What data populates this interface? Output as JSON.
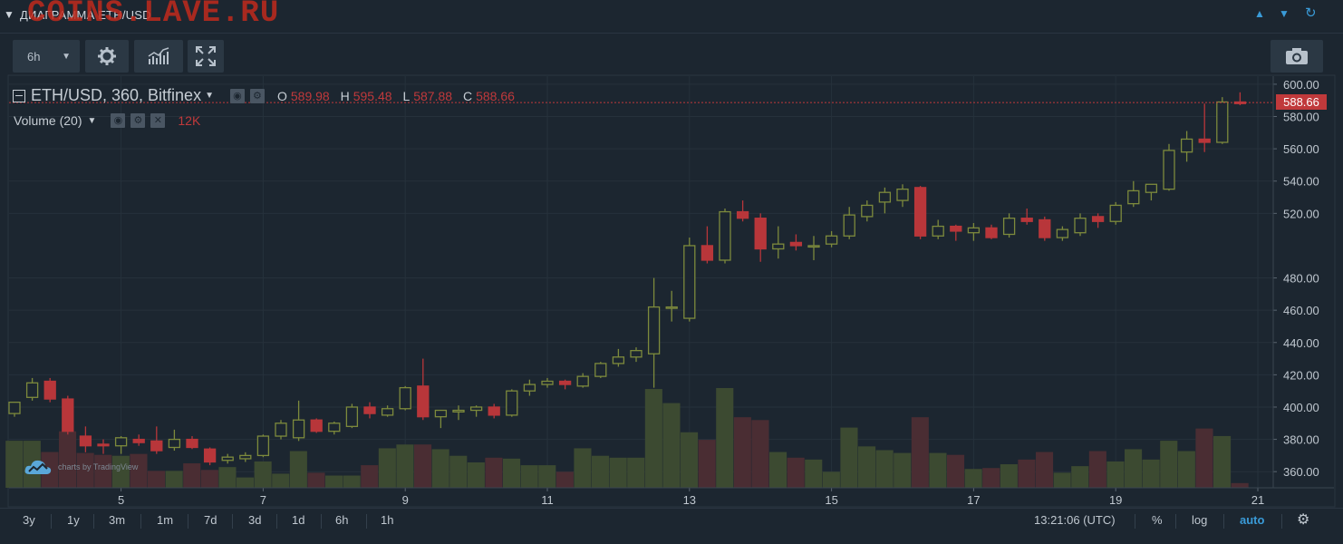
{
  "header": {
    "title": "ДИАГРАММА ETH/USD",
    "watermark": "COINS.LAVE.RU"
  },
  "toolbar": {
    "interval": "6h"
  },
  "legend": {
    "symbol": "ETH/USD, 360, Bitfinex",
    "o_label": "O",
    "o_value": "589.98",
    "h_label": "H",
    "h_value": "595.48",
    "l_label": "L",
    "l_value": "587.88",
    "c_label": "C",
    "c_value": "588.66",
    "volume_label": "Volume (20)",
    "volume_value": "12K"
  },
  "last_price": "588.66",
  "attribution": "charts by TradingView",
  "bottom": {
    "ranges": [
      "3y",
      "1y",
      "3m",
      "1m",
      "7d",
      "3d",
      "1d",
      "6h",
      "1h"
    ],
    "time": "13:21:06 (UTC)",
    "percent": "%",
    "log": "log",
    "auto": "auto"
  },
  "colors": {
    "up": "#7d8a3c",
    "down": "#b8363a",
    "vol_up": "#3c4a31",
    "vol_down": "#4a2d33",
    "background": "#1c2630",
    "grid": "#26313b",
    "axis_text": "#c0c8d0"
  },
  "chart_data": {
    "type": "candlestick",
    "title": "ETH/USD, 360, Bitfinex",
    "ylim": [
      350,
      605
    ],
    "y_ticks": [
      360,
      380,
      400,
      420,
      440,
      460,
      480,
      520,
      540,
      560,
      580,
      600
    ],
    "x_ticks": [
      {
        "label": "5",
        "i": 6
      },
      {
        "label": "7",
        "i": 14
      },
      {
        "label": "9",
        "i": 22
      },
      {
        "label": "11",
        "i": 30
      },
      {
        "label": "13",
        "i": 38
      },
      {
        "label": "15",
        "i": 46
      },
      {
        "label": "17",
        "i": 54
      },
      {
        "label": "19",
        "i": 62
      },
      {
        "label": "21",
        "i": 70
      }
    ],
    "grid": true,
    "candles": [
      {
        "o": 396,
        "h": 403,
        "l": 394,
        "c": 403,
        "v": 5000
      },
      {
        "o": 406,
        "h": 418,
        "l": 404,
        "c": 415,
        "v": 5000
      },
      {
        "o": 416,
        "h": 418,
        "l": 403,
        "c": 405,
        "v": 3800
      },
      {
        "o": 405,
        "h": 407,
        "l": 383,
        "c": 385,
        "v": 6000
      },
      {
        "o": 382,
        "h": 388,
        "l": 372,
        "c": 376,
        "v": 3700
      },
      {
        "o": 377,
        "h": 380,
        "l": 371,
        "c": 376,
        "v": 3500
      },
      {
        "o": 376,
        "h": 382,
        "l": 371,
        "c": 381,
        "v": 3400
      },
      {
        "o": 380,
        "h": 383,
        "l": 376,
        "c": 378,
        "v": 3600
      },
      {
        "o": 379,
        "h": 388,
        "l": 371,
        "c": 373,
        "v": 1800
      },
      {
        "o": 375,
        "h": 386,
        "l": 373,
        "c": 380,
        "v": 1800
      },
      {
        "o": 380,
        "h": 382,
        "l": 374,
        "c": 375,
        "v": 2600
      },
      {
        "o": 374,
        "h": 375,
        "l": 364,
        "c": 366,
        "v": 1900
      },
      {
        "o": 367,
        "h": 371,
        "l": 365,
        "c": 369,
        "v": 2200
      },
      {
        "o": 368,
        "h": 372,
        "l": 366,
        "c": 370,
        "v": 1100
      },
      {
        "o": 370,
        "h": 383,
        "l": 369,
        "c": 382,
        "v": 2800
      },
      {
        "o": 382,
        "h": 392,
        "l": 380,
        "c": 390,
        "v": 1500
      },
      {
        "o": 381,
        "h": 404,
        "l": 379,
        "c": 392,
        "v": 3900
      },
      {
        "o": 392,
        "h": 393,
        "l": 384,
        "c": 385,
        "v": 1600
      },
      {
        "o": 385,
        "h": 391,
        "l": 383,
        "c": 390,
        "v": 1300
      },
      {
        "o": 388,
        "h": 402,
        "l": 387,
        "c": 400,
        "v": 1300
      },
      {
        "o": 400,
        "h": 403,
        "l": 393,
        "c": 396,
        "v": 2400
      },
      {
        "o": 395,
        "h": 401,
        "l": 394,
        "c": 399,
        "v": 4200
      },
      {
        "o": 399,
        "h": 413,
        "l": 398,
        "c": 412,
        "v": 4600
      },
      {
        "o": 413,
        "h": 430,
        "l": 392,
        "c": 394,
        "v": 4600
      },
      {
        "o": 394,
        "h": 398,
        "l": 387,
        "c": 398,
        "v": 4100
      },
      {
        "o": 397,
        "h": 401,
        "l": 392,
        "c": 398,
        "v": 3400
      },
      {
        "o": 398,
        "h": 401,
        "l": 394,
        "c": 400,
        "v": 2700
      },
      {
        "o": 400,
        "h": 402,
        "l": 393,
        "c": 395,
        "v": 3200
      },
      {
        "o": 395,
        "h": 411,
        "l": 394,
        "c": 410,
        "v": 3100
      },
      {
        "o": 410,
        "h": 417,
        "l": 407,
        "c": 414,
        "v": 2400
      },
      {
        "o": 414,
        "h": 418,
        "l": 412,
        "c": 416,
        "v": 2400
      },
      {
        "o": 416,
        "h": 417,
        "l": 411,
        "c": 414,
        "v": 1700
      },
      {
        "o": 413,
        "h": 421,
        "l": 412,
        "c": 419,
        "v": 4200
      },
      {
        "o": 419,
        "h": 428,
        "l": 418,
        "c": 427,
        "v": 3400
      },
      {
        "o": 427,
        "h": 436,
        "l": 425,
        "c": 431,
        "v": 3200
      },
      {
        "o": 431,
        "h": 437,
        "l": 428,
        "c": 435,
        "v": 3200
      },
      {
        "o": 433,
        "h": 480,
        "l": 412,
        "c": 462,
        "v": 10500
      },
      {
        "o": 462,
        "h": 472,
        "l": 453,
        "c": 462,
        "v": 9000
      },
      {
        "o": 455,
        "h": 505,
        "l": 453,
        "c": 500,
        "v": 5900
      },
      {
        "o": 500,
        "h": 512,
        "l": 489,
        "c": 491,
        "v": 5100
      },
      {
        "o": 491,
        "h": 523,
        "l": 489,
        "c": 521,
        "v": 10600
      },
      {
        "o": 521,
        "h": 528,
        "l": 515,
        "c": 517,
        "v": 7500
      },
      {
        "o": 517,
        "h": 520,
        "l": 490,
        "c": 498,
        "v": 7200
      },
      {
        "o": 498,
        "h": 512,
        "l": 492,
        "c": 501,
        "v": 3800
      },
      {
        "o": 502,
        "h": 507,
        "l": 497,
        "c": 500,
        "v": 3200
      },
      {
        "o": 500,
        "h": 506,
        "l": 491,
        "c": 500,
        "v": 3000
      },
      {
        "o": 501,
        "h": 509,
        "l": 499,
        "c": 506,
        "v": 1700
      },
      {
        "o": 506,
        "h": 524,
        "l": 504,
        "c": 519,
        "v": 6400
      },
      {
        "o": 518,
        "h": 528,
        "l": 515,
        "c": 525,
        "v": 4400
      },
      {
        "o": 527,
        "h": 536,
        "l": 520,
        "c": 533,
        "v": 4000
      },
      {
        "o": 528,
        "h": 538,
        "l": 524,
        "c": 535,
        "v": 3700
      },
      {
        "o": 536,
        "h": 537,
        "l": 504,
        "c": 506,
        "v": 7500
      },
      {
        "o": 506,
        "h": 516,
        "l": 504,
        "c": 512,
        "v": 3700
      },
      {
        "o": 512,
        "h": 513,
        "l": 503,
        "c": 509,
        "v": 3500
      },
      {
        "o": 508,
        "h": 514,
        "l": 503,
        "c": 511,
        "v": 2000
      },
      {
        "o": 511,
        "h": 513,
        "l": 504,
        "c": 505,
        "v": 2100
      },
      {
        "o": 507,
        "h": 520,
        "l": 505,
        "c": 517,
        "v": 2500
      },
      {
        "o": 517,
        "h": 523,
        "l": 513,
        "c": 515,
        "v": 3000
      },
      {
        "o": 516,
        "h": 518,
        "l": 503,
        "c": 505,
        "v": 3800
      },
      {
        "o": 505,
        "h": 512,
        "l": 503,
        "c": 510,
        "v": 1600
      },
      {
        "o": 508,
        "h": 520,
        "l": 506,
        "c": 517,
        "v": 2300
      },
      {
        "o": 518,
        "h": 520,
        "l": 511,
        "c": 515,
        "v": 3900
      },
      {
        "o": 515,
        "h": 527,
        "l": 513,
        "c": 525,
        "v": 2800
      },
      {
        "o": 526,
        "h": 540,
        "l": 524,
        "c": 534,
        "v": 4100
      },
      {
        "o": 533,
        "h": 538,
        "l": 528,
        "c": 538,
        "v": 3000
      },
      {
        "o": 535,
        "h": 563,
        "l": 534,
        "c": 559,
        "v": 5000
      },
      {
        "o": 558,
        "h": 571,
        "l": 552,
        "c": 566,
        "v": 3900
      },
      {
        "o": 566,
        "h": 588,
        "l": 558,
        "c": 564,
        "v": 6300
      },
      {
        "o": 564,
        "h": 592,
        "l": 563,
        "c": 589,
        "v": 5500
      },
      {
        "o": 589,
        "h": 595,
        "l": 587,
        "c": 588,
        "v": 500
      }
    ]
  }
}
